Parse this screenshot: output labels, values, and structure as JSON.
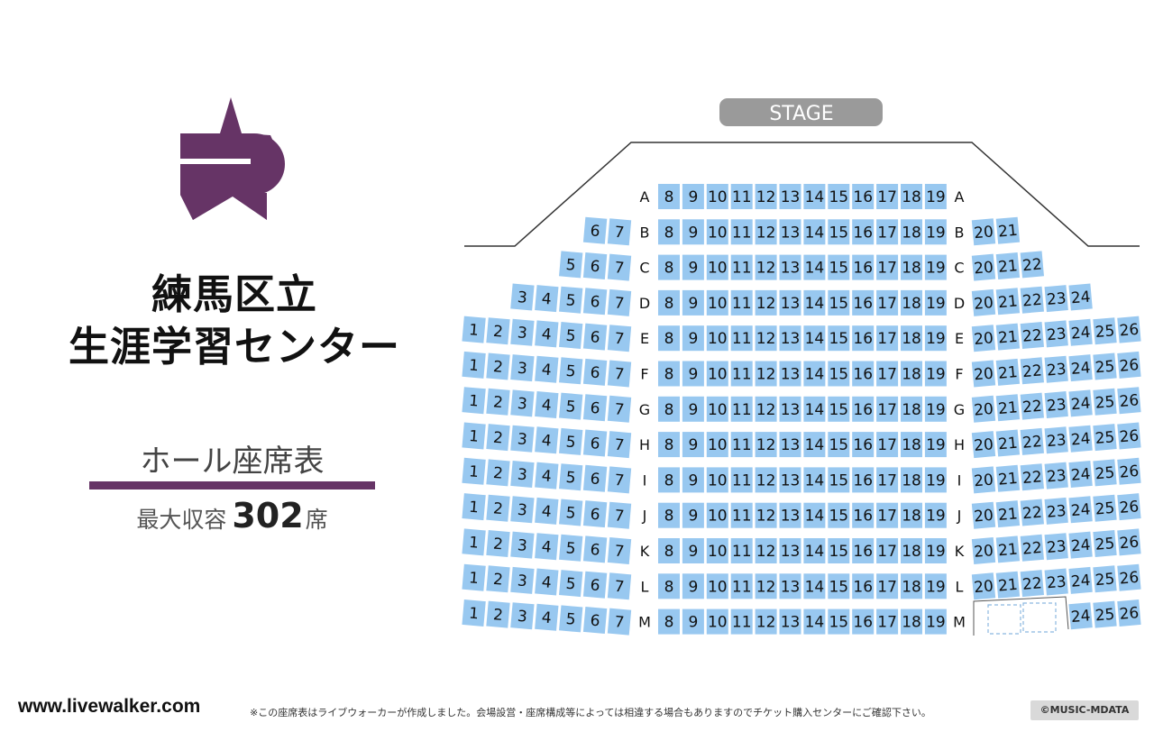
{
  "venue": {
    "name_line1": "練馬区立",
    "name_line2": "生涯学習センター",
    "map_subtitle": "ホール座席表",
    "capacity_label": "最大収容",
    "capacity_value": "302",
    "capacity_unit": "席"
  },
  "stage": {
    "label": "STAGE"
  },
  "rows": [
    {
      "label": "A",
      "left": [],
      "center": [
        8,
        9,
        10,
        11,
        12,
        13,
        14,
        15,
        16,
        17,
        18,
        19
      ],
      "right": []
    },
    {
      "label": "B",
      "left": [
        6,
        7
      ],
      "center": [
        8,
        9,
        10,
        11,
        12,
        13,
        14,
        15,
        16,
        17,
        18,
        19
      ],
      "right": [
        20,
        21
      ]
    },
    {
      "label": "C",
      "left": [
        5,
        6,
        7
      ],
      "center": [
        8,
        9,
        10,
        11,
        12,
        13,
        14,
        15,
        16,
        17,
        18,
        19
      ],
      "right": [
        20,
        21,
        22
      ]
    },
    {
      "label": "D",
      "left": [
        3,
        4,
        5,
        6,
        7
      ],
      "center": [
        8,
        9,
        10,
        11,
        12,
        13,
        14,
        15,
        16,
        17,
        18,
        19
      ],
      "right": [
        20,
        21,
        22,
        23,
        24
      ]
    },
    {
      "label": "E",
      "left": [
        1,
        2,
        3,
        4,
        5,
        6,
        7
      ],
      "center": [
        8,
        9,
        10,
        11,
        12,
        13,
        14,
        15,
        16,
        17,
        18,
        19
      ],
      "right": [
        20,
        21,
        22,
        23,
        24,
        25,
        26
      ]
    },
    {
      "label": "F",
      "left": [
        1,
        2,
        3,
        4,
        5,
        6,
        7
      ],
      "center": [
        8,
        9,
        10,
        11,
        12,
        13,
        14,
        15,
        16,
        17,
        18,
        19
      ],
      "right": [
        20,
        21,
        22,
        23,
        24,
        25,
        26
      ]
    },
    {
      "label": "G",
      "left": [
        1,
        2,
        3,
        4,
        5,
        6,
        7
      ],
      "center": [
        8,
        9,
        10,
        11,
        12,
        13,
        14,
        15,
        16,
        17,
        18,
        19
      ],
      "right": [
        20,
        21,
        22,
        23,
        24,
        25,
        26
      ]
    },
    {
      "label": "H",
      "left": [
        1,
        2,
        3,
        4,
        5,
        6,
        7
      ],
      "center": [
        8,
        9,
        10,
        11,
        12,
        13,
        14,
        15,
        16,
        17,
        18,
        19
      ],
      "right": [
        20,
        21,
        22,
        23,
        24,
        25,
        26
      ]
    },
    {
      "label": "I",
      "left": [
        1,
        2,
        3,
        4,
        5,
        6,
        7
      ],
      "center": [
        8,
        9,
        10,
        11,
        12,
        13,
        14,
        15,
        16,
        17,
        18,
        19
      ],
      "right": [
        20,
        21,
        22,
        23,
        24,
        25,
        26
      ]
    },
    {
      "label": "J",
      "left": [
        1,
        2,
        3,
        4,
        5,
        6,
        7
      ],
      "center": [
        8,
        9,
        10,
        11,
        12,
        13,
        14,
        15,
        16,
        17,
        18,
        19
      ],
      "right": [
        20,
        21,
        22,
        23,
        24,
        25,
        26
      ]
    },
    {
      "label": "K",
      "left": [
        1,
        2,
        3,
        4,
        5,
        6,
        7
      ],
      "center": [
        8,
        9,
        10,
        11,
        12,
        13,
        14,
        15,
        16,
        17,
        18,
        19
      ],
      "right": [
        20,
        21,
        22,
        23,
        24,
        25,
        26
      ]
    },
    {
      "label": "L",
      "left": [
        1,
        2,
        3,
        4,
        5,
        6,
        7
      ],
      "center": [
        8,
        9,
        10,
        11,
        12,
        13,
        14,
        15,
        16,
        17,
        18,
        19
      ],
      "right": [
        20,
        21,
        22,
        23,
        24,
        25,
        26
      ]
    },
    {
      "label": "M",
      "left": [
        1,
        2,
        3,
        4,
        5,
        6,
        7
      ],
      "center": [
        8,
        9,
        10,
        11,
        12,
        13,
        14,
        15,
        16,
        17,
        18,
        19
      ],
      "right": [
        24,
        25,
        26
      ]
    }
  ],
  "colors": {
    "seat": "#98c8f0",
    "brand": "#663466",
    "stage": "#9a9a9a"
  },
  "footer": {
    "site_url": "www.livewalker.com",
    "disclaimer": "※この座席表はライブウォーカーが作成しました。会場設営・座席構成等によっては相違する場合もありますのでチケット購入センターにご確認下さい。",
    "copyright": "©MUSIC-MDATA"
  }
}
